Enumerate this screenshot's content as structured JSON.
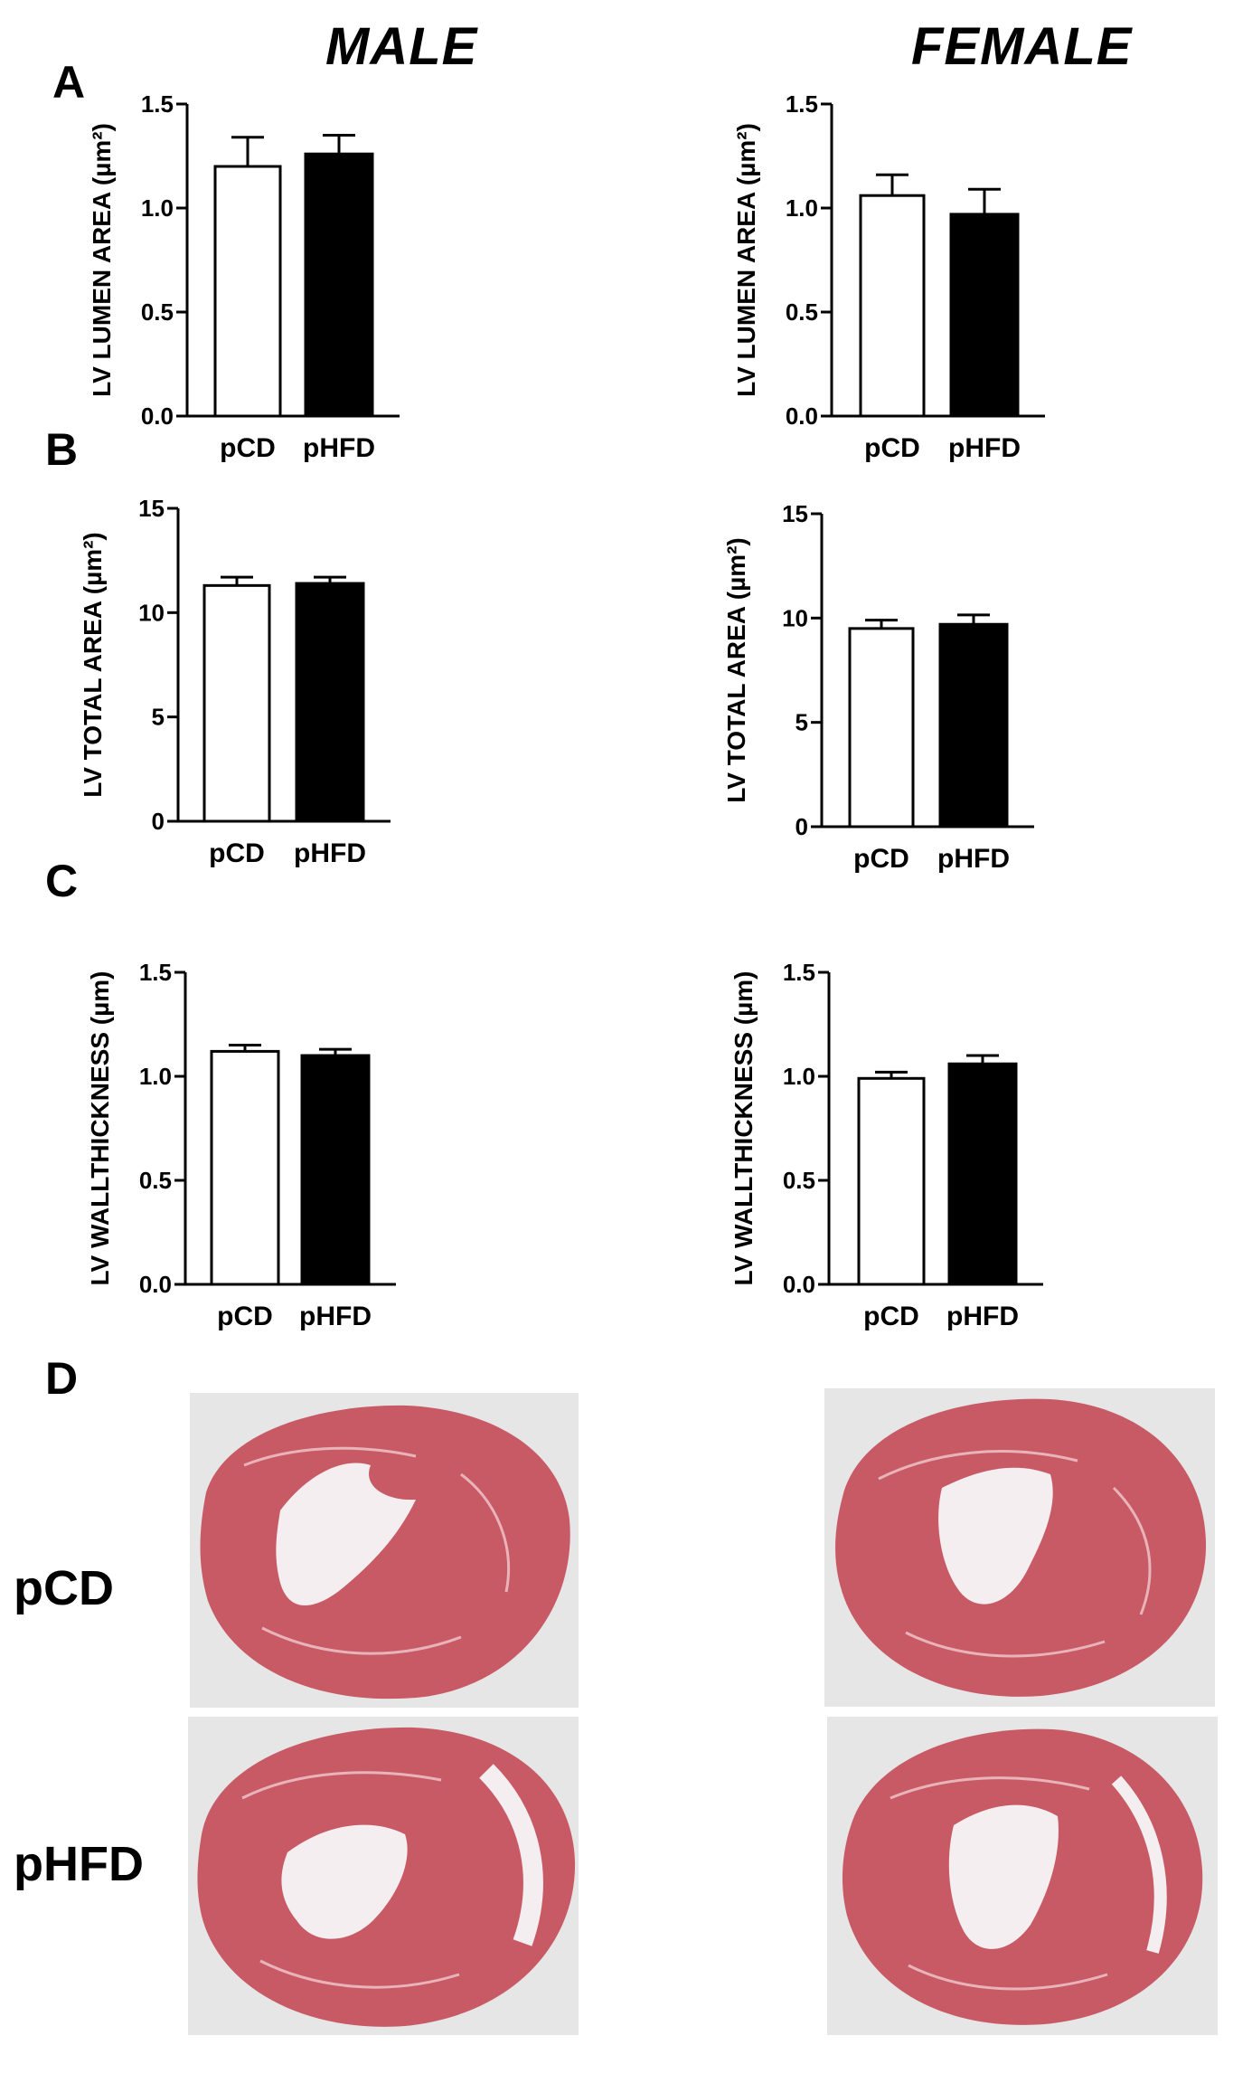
{
  "headers": {
    "male": "MALE",
    "female": "FEMALE"
  },
  "panels": {
    "a": "A",
    "b": "B",
    "c": "C",
    "d": "D"
  },
  "histology": {
    "row_pcd": "pCD",
    "row_phfd": "pHFD"
  },
  "colors": {
    "pcd_fill": "#ffffff",
    "phfd_fill": "#000000",
    "stroke": "#000000",
    "tissue": "#c85a66",
    "lumen": "#f4eef0"
  },
  "chart_data": [
    {
      "id": "lumen-male",
      "type": "bar",
      "ylabel": "LV LUMEN AREA (µm²)",
      "categories": [
        "pCD",
        "pHFD"
      ],
      "values": [
        1.2,
        1.26
      ],
      "errors": [
        0.14,
        0.09
      ],
      "ylim": [
        0,
        1.5
      ],
      "yticks": [
        0,
        0.5,
        1.0,
        1.5
      ],
      "ytick_labels": [
        "0.0",
        "0.5",
        "1.0",
        "1.5"
      ]
    },
    {
      "id": "lumen-female",
      "type": "bar",
      "ylabel": "LV LUMEN AREA (µm²)",
      "categories": [
        "pCD",
        "pHFD"
      ],
      "values": [
        1.06,
        0.97
      ],
      "errors": [
        0.1,
        0.12
      ],
      "ylim": [
        0,
        1.5
      ],
      "yticks": [
        0,
        0.5,
        1.0,
        1.5
      ],
      "ytick_labels": [
        "0.0",
        "0.5",
        "1.0",
        "1.5"
      ]
    },
    {
      "id": "total-male",
      "type": "bar",
      "ylabel": "LV TOTAL AREA (µm²)",
      "categories": [
        "pCD",
        "pHFD"
      ],
      "values": [
        11.3,
        11.4
      ],
      "errors": [
        0.4,
        0.3
      ],
      "ylim": [
        0,
        15
      ],
      "yticks": [
        0,
        5,
        10,
        15
      ],
      "ytick_labels": [
        "0",
        "5",
        "10",
        "15"
      ]
    },
    {
      "id": "total-female",
      "type": "bar",
      "ylabel": "LV TOTAL AREA (µm²)",
      "categories": [
        "pCD",
        "pHFD"
      ],
      "values": [
        9.5,
        9.7
      ],
      "errors": [
        0.4,
        0.45
      ],
      "ylim": [
        0,
        15
      ],
      "yticks": [
        0,
        5,
        10,
        15
      ],
      "ytick_labels": [
        "0",
        "5",
        "10",
        "15"
      ]
    },
    {
      "id": "wall-male",
      "type": "bar",
      "ylabel": "LV WALLTHICKNESS (µm)",
      "categories": [
        "pCD",
        "pHFD"
      ],
      "values": [
        1.12,
        1.1
      ],
      "errors": [
        0.03,
        0.03
      ],
      "ylim": [
        0,
        1.5
      ],
      "yticks": [
        0,
        0.5,
        1.0,
        1.5
      ],
      "ytick_labels": [
        "0.0",
        "0.5",
        "1.0",
        "1.5"
      ]
    },
    {
      "id": "wall-female",
      "type": "bar",
      "ylabel": "LV WALLTHICKNESS (µm)",
      "categories": [
        "pCD",
        "pHFD"
      ],
      "values": [
        0.99,
        1.06
      ],
      "errors": [
        0.03,
        0.04
      ],
      "ylim": [
        0,
        1.5
      ],
      "yticks": [
        0,
        0.5,
        1.0,
        1.5
      ],
      "ytick_labels": [
        "0.0",
        "0.5",
        "1.0",
        "1.5"
      ]
    }
  ]
}
